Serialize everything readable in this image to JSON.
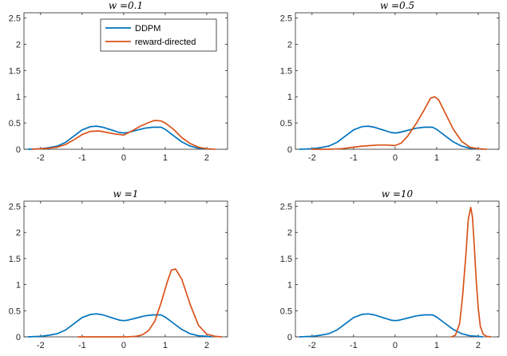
{
  "chart_data": [
    {
      "type": "line",
      "title": "w =0.1",
      "xlim": [
        -2.4,
        2.5
      ],
      "ylim": [
        0,
        2.6
      ],
      "xticks": [
        "-2",
        "-1",
        "0",
        "1",
        "2"
      ],
      "yticks": [
        "0",
        "0.5",
        "1",
        "1.5",
        "2",
        "2.5"
      ],
      "legend": {
        "location": "top-center",
        "entries": [
          "DDPM",
          "reward-directed"
        ]
      },
      "series": [
        {
          "name": "DDPM",
          "color": "#0072BD",
          "x": [
            -2.3,
            -2.0,
            -1.8,
            -1.6,
            -1.4,
            -1.2,
            -1.0,
            -0.8,
            -0.65,
            -0.5,
            -0.3,
            -0.1,
            0.0,
            0.1,
            0.3,
            0.5,
            0.7,
            0.9,
            1.0,
            1.2,
            1.4,
            1.6,
            1.8,
            2.0,
            2.1
          ],
          "y": [
            0.0,
            0.01,
            0.03,
            0.06,
            0.13,
            0.25,
            0.37,
            0.43,
            0.44,
            0.42,
            0.37,
            0.32,
            0.31,
            0.32,
            0.36,
            0.4,
            0.42,
            0.42,
            0.38,
            0.26,
            0.14,
            0.06,
            0.02,
            0.01,
            0.0
          ]
        },
        {
          "name": "reward-directed",
          "color": "#D95319",
          "x": [
            -2.2,
            -1.8,
            -1.6,
            -1.4,
            -1.2,
            -1.0,
            -0.8,
            -0.6,
            -0.4,
            -0.2,
            0.0,
            0.2,
            0.4,
            0.6,
            0.75,
            0.9,
            1.0,
            1.2,
            1.4,
            1.6,
            1.8,
            2.0,
            2.2
          ],
          "y": [
            0.0,
            0.02,
            0.04,
            0.09,
            0.18,
            0.28,
            0.34,
            0.35,
            0.32,
            0.29,
            0.27,
            0.35,
            0.44,
            0.51,
            0.55,
            0.54,
            0.5,
            0.38,
            0.22,
            0.11,
            0.04,
            0.01,
            0.0
          ]
        }
      ]
    },
    {
      "type": "line",
      "title": "w =0.5",
      "xlim": [
        -2.4,
        2.5
      ],
      "ylim": [
        0,
        2.6
      ],
      "xticks": [
        "-2",
        "-1",
        "0",
        "1",
        "2"
      ],
      "yticks": [
        "0",
        "0.5",
        "1",
        "1.5",
        "2",
        "2.5"
      ],
      "series": [
        {
          "name": "DDPM",
          "color": "#0072BD",
          "x": [
            -2.3,
            -2.0,
            -1.8,
            -1.6,
            -1.4,
            -1.2,
            -1.0,
            -0.8,
            -0.65,
            -0.5,
            -0.3,
            -0.1,
            0.0,
            0.1,
            0.3,
            0.5,
            0.7,
            0.9,
            1.0,
            1.2,
            1.4,
            1.6,
            1.8,
            2.0,
            2.1
          ],
          "y": [
            0.0,
            0.01,
            0.03,
            0.06,
            0.13,
            0.25,
            0.37,
            0.43,
            0.44,
            0.42,
            0.37,
            0.32,
            0.31,
            0.32,
            0.36,
            0.4,
            0.42,
            0.42,
            0.38,
            0.26,
            0.14,
            0.06,
            0.02,
            0.01,
            0.0
          ]
        },
        {
          "name": "reward-directed",
          "color": "#D95319",
          "x": [
            -2.0,
            -1.6,
            -1.3,
            -1.0,
            -0.8,
            -0.6,
            -0.4,
            -0.2,
            0.0,
            0.15,
            0.3,
            0.5,
            0.7,
            0.85,
            0.95,
            1.05,
            1.2,
            1.4,
            1.6,
            1.8,
            2.0,
            2.2
          ],
          "y": [
            0.0,
            0.0,
            0.01,
            0.04,
            0.06,
            0.07,
            0.08,
            0.08,
            0.07,
            0.12,
            0.25,
            0.48,
            0.75,
            0.97,
            1.0,
            0.94,
            0.7,
            0.38,
            0.15,
            0.04,
            0.01,
            0.0
          ]
        }
      ]
    },
    {
      "type": "line",
      "title": "w =1",
      "xlim": [
        -2.4,
        2.5
      ],
      "ylim": [
        0,
        2.6
      ],
      "xticks": [
        "-2",
        "-1",
        "0",
        "1",
        "2"
      ],
      "yticks": [
        "0",
        "0.5",
        "1",
        "1.5",
        "2",
        "2.5"
      ],
      "series": [
        {
          "name": "DDPM",
          "color": "#0072BD",
          "x": [
            -2.3,
            -2.0,
            -1.8,
            -1.6,
            -1.4,
            -1.2,
            -1.0,
            -0.8,
            -0.65,
            -0.5,
            -0.3,
            -0.1,
            0.0,
            0.1,
            0.3,
            0.5,
            0.7,
            0.9,
            1.0,
            1.2,
            1.4,
            1.6,
            1.8,
            2.0,
            2.1
          ],
          "y": [
            0.0,
            0.01,
            0.03,
            0.06,
            0.13,
            0.25,
            0.37,
            0.43,
            0.44,
            0.42,
            0.37,
            0.32,
            0.31,
            0.32,
            0.36,
            0.4,
            0.42,
            0.42,
            0.38,
            0.26,
            0.14,
            0.06,
            0.02,
            0.01,
            0.0
          ]
        },
        {
          "name": "reward-directed",
          "color": "#D95319",
          "x": [
            -1.1,
            -0.6,
            -0.2,
            0.1,
            0.3,
            0.45,
            0.6,
            0.75,
            0.9,
            1.05,
            1.15,
            1.25,
            1.4,
            1.6,
            1.8,
            2.0,
            2.2,
            2.35
          ],
          "y": [
            0.0,
            0.0,
            0.0,
            0.0,
            0.01,
            0.04,
            0.12,
            0.3,
            0.65,
            1.05,
            1.28,
            1.3,
            1.1,
            0.62,
            0.22,
            0.05,
            0.01,
            0.0
          ]
        }
      ]
    },
    {
      "type": "line",
      "title": "w =10",
      "xlim": [
        -2.4,
        2.5
      ],
      "ylim": [
        0,
        2.6
      ],
      "xticks": [
        "-2",
        "-1",
        "0",
        "1",
        "2"
      ],
      "yticks": [
        "0",
        "0.5",
        "1",
        "1.5",
        "2",
        "2.5"
      ],
      "series": [
        {
          "name": "DDPM",
          "color": "#0072BD",
          "x": [
            -2.3,
            -2.0,
            -1.8,
            -1.6,
            -1.4,
            -1.2,
            -1.0,
            -0.8,
            -0.65,
            -0.5,
            -0.3,
            -0.1,
            0.0,
            0.1,
            0.3,
            0.5,
            0.7,
            0.9,
            1.0,
            1.2,
            1.4,
            1.6,
            1.8,
            2.0,
            2.1
          ],
          "y": [
            0.0,
            0.01,
            0.03,
            0.06,
            0.13,
            0.25,
            0.37,
            0.43,
            0.44,
            0.42,
            0.37,
            0.32,
            0.31,
            0.32,
            0.36,
            0.4,
            0.42,
            0.42,
            0.38,
            0.26,
            0.14,
            0.06,
            0.02,
            0.01,
            0.0
          ]
        },
        {
          "name": "reward-directed",
          "color": "#D95319",
          "x": [
            1.35,
            1.45,
            1.55,
            1.62,
            1.7,
            1.76,
            1.82,
            1.86,
            1.9,
            1.95,
            2.0,
            2.05,
            2.12,
            2.2,
            2.3
          ],
          "y": [
            0.0,
            0.03,
            0.25,
            0.75,
            1.55,
            2.25,
            2.48,
            2.3,
            1.8,
            1.1,
            0.55,
            0.2,
            0.05,
            0.01,
            0.0
          ]
        }
      ]
    }
  ]
}
